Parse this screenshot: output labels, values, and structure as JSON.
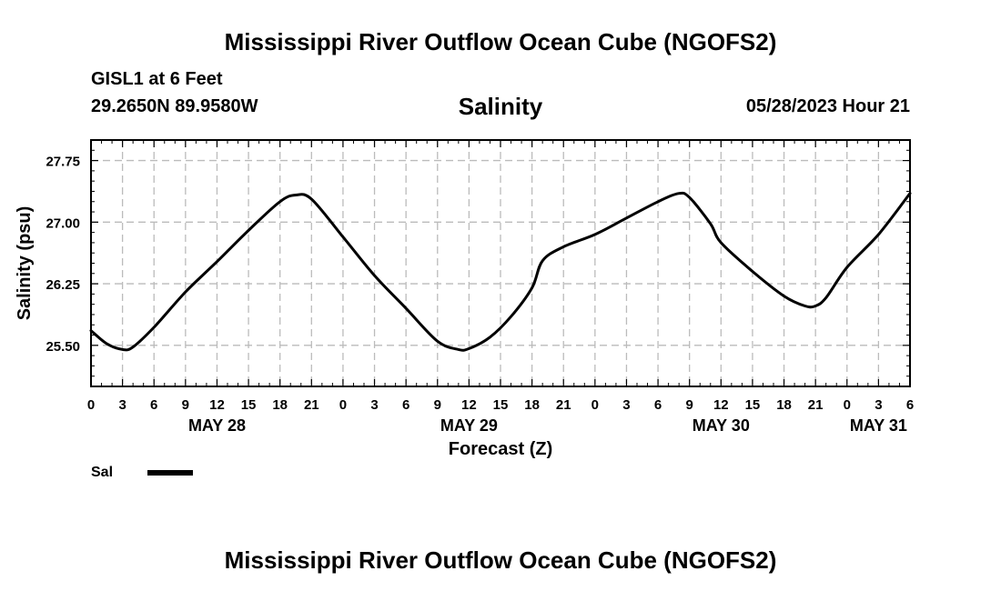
{
  "header": {
    "main_title": "Mississippi River Outflow Ocean Cube (NGOFS2)",
    "station_line1": "GISL1 at 6 Feet",
    "station_line2": "29.2650N  89.9580W",
    "subtitle": "Salinity",
    "datetime": "05/28/2023 Hour 21"
  },
  "footer": {
    "main_title": "Mississippi River Outflow Ocean Cube (NGOFS2)"
  },
  "legend": {
    "label": "Sal",
    "color": "#000000"
  },
  "chart_data": {
    "type": "line",
    "title": "Salinity",
    "xlabel": "Forecast (Z)",
    "ylabel": "Salinity (psu)",
    "x_unit": "hours since 05/28 00Z",
    "xlim": [
      0,
      78
    ],
    "ylim": [
      25.0,
      28.0
    ],
    "grid": true,
    "y_ticks": [
      25.5,
      26.25,
      27.0,
      27.75
    ],
    "y_tick_labels": [
      "25.50",
      "26.25",
      "27.00",
      "27.75"
    ],
    "x_ticks": [
      0,
      3,
      6,
      9,
      12,
      15,
      18,
      21,
      24,
      27,
      30,
      33,
      36,
      39,
      42,
      45,
      48,
      51,
      54,
      57,
      60,
      63,
      66,
      69,
      72,
      75,
      78
    ],
    "x_tick_labels": [
      "0",
      "3",
      "6",
      "9",
      "12",
      "15",
      "18",
      "21",
      "0",
      "3",
      "6",
      "9",
      "12",
      "15",
      "18",
      "21",
      "0",
      "3",
      "6",
      "9",
      "12",
      "15",
      "18",
      "21",
      "0",
      "3",
      "6"
    ],
    "date_labels": [
      {
        "x": 12,
        "label": "MAY 28"
      },
      {
        "x": 36,
        "label": "MAY 29"
      },
      {
        "x": 60,
        "label": "MAY 30"
      },
      {
        "x": 75,
        "label": "MAY 31"
      }
    ],
    "series": [
      {
        "name": "Sal",
        "color": "#000000",
        "x": [
          0,
          1.5,
          3,
          4,
          6,
          9,
          12,
          15,
          18,
          19.5,
          21,
          24,
          27,
          30,
          33,
          35,
          36,
          38,
          40,
          42,
          43,
          45,
          48,
          51,
          54,
          56,
          57,
          59,
          60,
          63,
          66,
          68,
          69,
          70,
          72,
          75,
          78
        ],
        "y": [
          25.68,
          25.52,
          25.45,
          25.48,
          25.72,
          26.15,
          26.52,
          26.9,
          27.25,
          27.33,
          27.28,
          26.82,
          26.35,
          25.95,
          25.55,
          25.45,
          25.46,
          25.6,
          25.85,
          26.2,
          26.53,
          26.7,
          26.85,
          27.05,
          27.25,
          27.35,
          27.3,
          26.98,
          26.75,
          26.4,
          26.1,
          25.98,
          25.98,
          26.08,
          26.45,
          26.85,
          27.35
        ]
      }
    ]
  }
}
